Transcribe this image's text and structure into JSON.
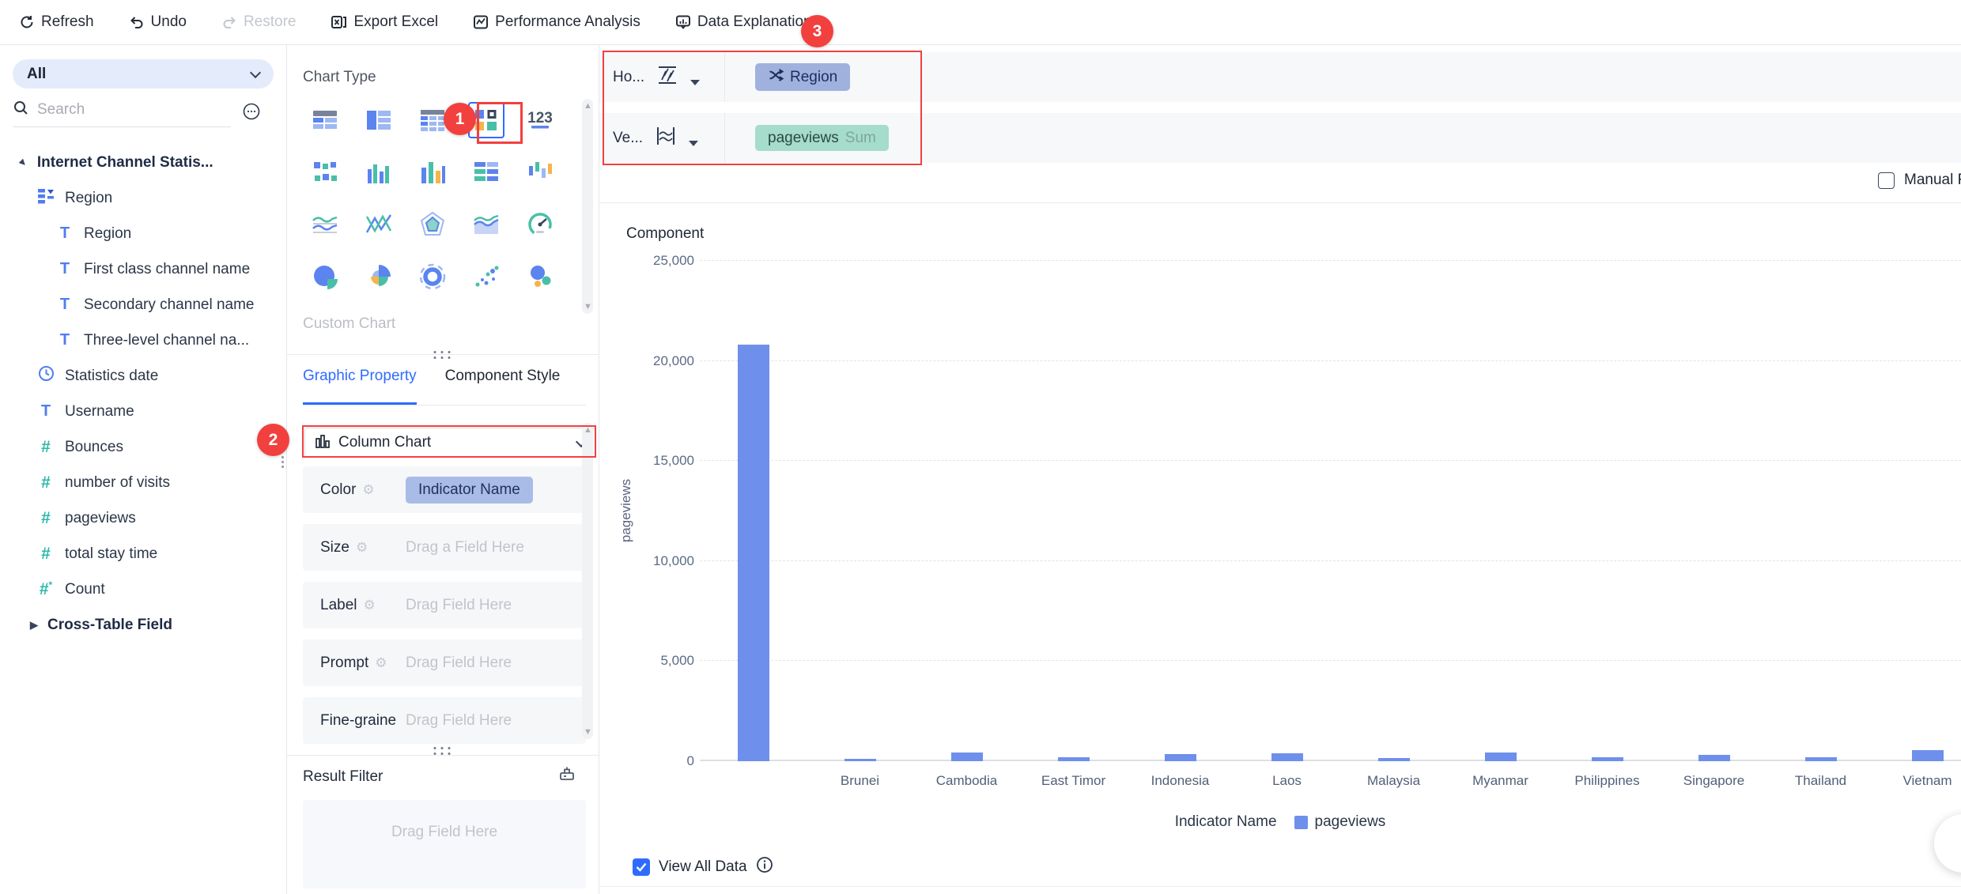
{
  "toolbar": {
    "refresh": "Refresh",
    "undo": "Undo",
    "restore": "Restore",
    "export_excel": "Export Excel",
    "performance_analysis": "Performance Analysis",
    "data_explanation": "Data Explanation"
  },
  "sidebar": {
    "filter_all": "All",
    "search_placeholder": "Search",
    "dataset": "Internet Channel Statis...",
    "fields": [
      {
        "icon": "hierarchy-icon",
        "label": "Region",
        "level": 1
      },
      {
        "icon": "text-field-icon",
        "label": "Region",
        "level": 2
      },
      {
        "icon": "text-field-icon",
        "label": "First class channel name",
        "level": 2
      },
      {
        "icon": "text-field-icon",
        "label": "Secondary channel name",
        "level": 2
      },
      {
        "icon": "text-field-icon",
        "label": "Three-level channel na...",
        "level": 2
      },
      {
        "icon": "time-field-icon",
        "label": "Statistics date",
        "level": 1
      },
      {
        "icon": "text-field-icon",
        "label": "Username",
        "level": 1
      },
      {
        "icon": "number-field-icon",
        "label": "Bounces",
        "level": 1
      },
      {
        "icon": "number-field-icon",
        "label": "number of visits",
        "level": 1
      },
      {
        "icon": "number-field-icon",
        "label": "pageviews",
        "level": 1
      },
      {
        "icon": "number-field-icon",
        "label": "total stay time",
        "level": 1
      },
      {
        "icon": "calc-field-icon",
        "label": "Count",
        "level": 1
      }
    ],
    "cross_table": "Cross-Table Field"
  },
  "chart_panel": {
    "title": "Chart Type",
    "custom_title": "Custom Chart",
    "tabs": [
      "Graphic Property",
      "Component Style"
    ],
    "chart_types": [
      "table-detail",
      "table-summary",
      "table-pivot",
      "quadrant",
      "indicator-card",
      "percent-stat",
      "column-grouped",
      "column-basic",
      "bar-group",
      "column-range",
      "line-double",
      "line-mix",
      "radar",
      "area-stacked",
      "gauge",
      "pie",
      "pie-rose",
      "donut",
      "scatter",
      "bubble"
    ],
    "selected_chart_type": "quadrant",
    "selected_chart": "Column Chart",
    "properties": [
      {
        "label": "Color",
        "has_gear": true,
        "chip": "Indicator Name"
      },
      {
        "label": "Size",
        "has_gear": true,
        "placeholder": "Drag a Field Here"
      },
      {
        "label": "Label",
        "has_gear": true,
        "placeholder": "Drag Field Here"
      },
      {
        "label": "Prompt",
        "has_gear": true,
        "placeholder": "Drag Field Here"
      },
      {
        "label": "Fine-grained",
        "has_gear": false,
        "placeholder": "Drag Field Here"
      }
    ],
    "result_filter": {
      "label": "Result Filter",
      "placeholder": "Drag Field Here"
    }
  },
  "canvas": {
    "horizontal_label": "Ho...",
    "vertical_label": "Ve...",
    "horizontal_chip": "Region",
    "vertical_chip": "pageviews",
    "vertical_chip_agg": "Sum",
    "manual_label": "Manual F",
    "view_all_label": "View All Data"
  },
  "chart_data": {
    "type": "bar",
    "title": "Component",
    "xlabel": "",
    "ylabel": "pageviews",
    "categories": [
      "",
      "Brunei",
      "Cambodia",
      "East Timor",
      "Indonesia",
      "Laos",
      "Malaysia",
      "Myanmar",
      "Philippines",
      "Singapore",
      "Thailand",
      "Vietnam"
    ],
    "series": [
      {
        "name": "pageviews",
        "values": [
          20800,
          100,
          420,
          200,
          350,
          400,
          150,
          420,
          200,
          300,
          200,
          550
        ]
      }
    ],
    "ylim": [
      0,
      25000
    ],
    "ytick_step": 5000,
    "grid": "dashed-horizontal",
    "legend_title": "Indicator Name",
    "legend_position": "bottom"
  },
  "annotations": {
    "step1": "1",
    "step2": "2",
    "step3": "3"
  },
  "colors": {
    "bar": "#6e8feb",
    "accent_blue": "#2f6bff",
    "annotation_red": "#f2403e",
    "dimension_chip": "#a0b1dd",
    "measure_chip": "#a5dccb",
    "color_chip": "#a9bce8",
    "field_text_icon": "#4f7df0",
    "field_number_icon": "#2bb8a8"
  }
}
